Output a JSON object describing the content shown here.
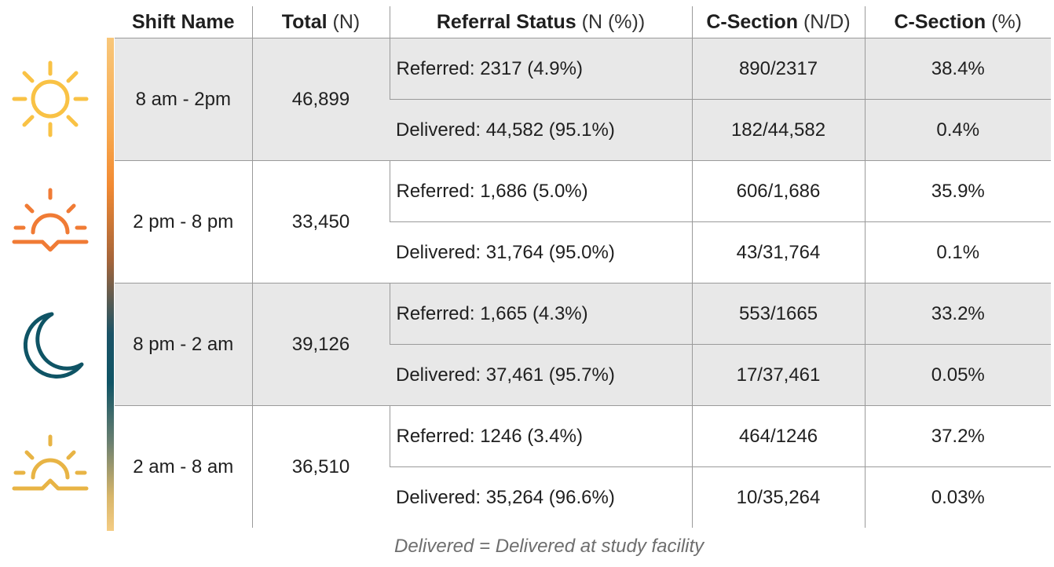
{
  "icon_colors": {
    "sun": "#f9c245",
    "sunset": "#f07b35",
    "moon": "#0f5465",
    "sunrise": "#e8b445"
  },
  "header": {
    "shift": {
      "bold": "Shift Name",
      "unit": ""
    },
    "total": {
      "bold": "Total",
      "unit": " (N)"
    },
    "referral": {
      "bold": "Referral Status",
      "unit": " (N (%))"
    },
    "csection_nd": {
      "bold": "C-Section",
      "unit": " (N/D)"
    },
    "csection_pct": {
      "bold": "C-Section",
      "unit": " (%)"
    }
  },
  "shifts": [
    {
      "icon": "sun-icon",
      "name": "8 am - 2pm",
      "total": "46,899",
      "rows": [
        {
          "status": "Referred: 2317 (4.9%)",
          "nd": "890/2317",
          "pct": "38.4%"
        },
        {
          "status": "Delivered: 44,582 (95.1%)",
          "nd": "182/44,582",
          "pct": "0.4%"
        }
      ]
    },
    {
      "icon": "sunset-icon",
      "name": "2 pm - 8 pm",
      "total": "33,450",
      "rows": [
        {
          "status": "Referred: 1,686 (5.0%)",
          "nd": "606/1,686",
          "pct": "35.9%"
        },
        {
          "status": "Delivered: 31,764 (95.0%)",
          "nd": "43/31,764",
          "pct": "0.1%"
        }
      ]
    },
    {
      "icon": "moon-icon",
      "name": "8 pm - 2 am",
      "total": "39,126",
      "rows": [
        {
          "status": "Referred: 1,665 (4.3%)",
          "nd": "553/1665",
          "pct": "33.2%"
        },
        {
          "status": "Delivered: 37,461 (95.7%)",
          "nd": "17/37,461",
          "pct": "0.05%"
        }
      ]
    },
    {
      "icon": "sunrise-icon",
      "name": "2 am - 8 am",
      "total": "36,510",
      "rows": [
        {
          "status": "Referred: 1246 (3.4%)",
          "nd": "464/1246",
          "pct": "37.2%"
        },
        {
          "status": "Delivered: 35,264 (96.6%)",
          "nd": "10/35,264",
          "pct": "0.03%"
        }
      ]
    }
  ],
  "footnote": "Delivered = Delivered at study facility"
}
